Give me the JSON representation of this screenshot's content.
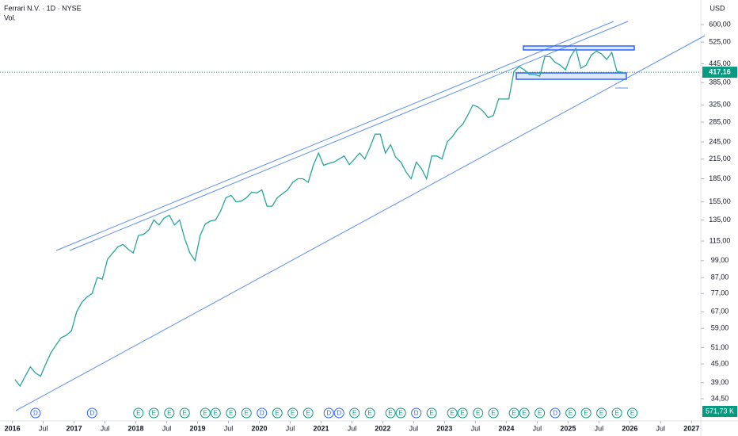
{
  "header": {
    "title": "Ferrari N.V. · 1D · NYSE",
    "volume_label": "Vol.",
    "currency": "USD",
    "volume_value": "571,73 K"
  },
  "chart_data": {
    "type": "line",
    "log_scale": true,
    "grid": false,
    "last_price": {
      "value": 417.16,
      "label": "417,16"
    },
    "ylim": [
      29.3,
      724
    ],
    "yticks": [
      {
        "value": 600,
        "label": "600,00"
      },
      {
        "value": 525,
        "label": "525,00"
      },
      {
        "value": 445,
        "label": "445,00"
      },
      {
        "value": 385,
        "label": "385,00"
      },
      {
        "value": 325,
        "label": "325,00"
      },
      {
        "value": 285,
        "label": "285,00"
      },
      {
        "value": 245,
        "label": "245,00"
      },
      {
        "value": 215,
        "label": "215,00"
      },
      {
        "value": 185,
        "label": "185,00"
      },
      {
        "value": 155,
        "label": "155,00"
      },
      {
        "value": 135,
        "label": "135,00"
      },
      {
        "value": 115,
        "label": "115,00"
      },
      {
        "value": 99,
        "label": "99,00"
      },
      {
        "value": 87,
        "label": "87,00"
      },
      {
        "value": 77,
        "label": "77,00"
      },
      {
        "value": 67,
        "label": "67,00"
      },
      {
        "value": 59,
        "label": "59,00"
      },
      {
        "value": 51,
        "label": "51,00"
      },
      {
        "value": 45,
        "label": "45,00"
      },
      {
        "value": 39,
        "label": "39,00"
      },
      {
        "value": 34.5,
        "label": "34,50"
      }
    ],
    "xlim": [
      2015.8,
      2027.15
    ],
    "xticks": [
      2016,
      {
        "value": 2016.5,
        "label": "Jul"
      },
      2017,
      {
        "value": 2017.5,
        "label": "Jul"
      },
      2018,
      {
        "value": 2018.5,
        "label": "Jul"
      },
      2019,
      {
        "value": 2019.5,
        "label": "Jul"
      },
      2020,
      {
        "value": 2020.5,
        "label": "Jul"
      },
      2021,
      {
        "value": 2021.5,
        "label": "Jul"
      },
      2022,
      {
        "value": 2022.5,
        "label": "Jul"
      },
      2023,
      {
        "value": 2023.5,
        "label": "Jul"
      },
      2024,
      {
        "value": 2024.5,
        "label": "Jul"
      },
      2025,
      {
        "value": 2025.5,
        "label": "Jul"
      },
      2026,
      {
        "value": 2026.5,
        "label": "Jul"
      },
      2027
    ],
    "series": [
      {
        "color": "#26a69a",
        "x": [
          "2016-01",
          "2016-02",
          "2016-03",
          "2016-04",
          "2016-05",
          "2016-06",
          "2016-07",
          "2016-08",
          "2016-09",
          "2016-10",
          "2016-11",
          "2016-12",
          "2017-01",
          "2017-02",
          "2017-03",
          "2017-04",
          "2017-05",
          "2017-06",
          "2017-07",
          "2017-08",
          "2017-09",
          "2017-10",
          "2017-11",
          "2017-12",
          "2018-01",
          "2018-02",
          "2018-03",
          "2018-04",
          "2018-05",
          "2018-06",
          "2018-07",
          "2018-08",
          "2018-09",
          "2018-10",
          "2018-11",
          "2018-12",
          "2019-01",
          "2019-02",
          "2019-03",
          "2019-04",
          "2019-05",
          "2019-06",
          "2019-07",
          "2019-08",
          "2019-09",
          "2019-10",
          "2019-11",
          "2019-12",
          "2020-01",
          "2020-02",
          "2020-03",
          "2020-04",
          "2020-05",
          "2020-06",
          "2020-07",
          "2020-08",
          "2020-09",
          "2020-10",
          "2020-11",
          "2020-12",
          "2021-01",
          "2021-02",
          "2021-03",
          "2021-04",
          "2021-05",
          "2021-06",
          "2021-07",
          "2021-08",
          "2021-09",
          "2021-10",
          "2021-11",
          "2021-12",
          "2022-01",
          "2022-02",
          "2022-03",
          "2022-04",
          "2022-05",
          "2022-06",
          "2022-07",
          "2022-08",
          "2022-09",
          "2022-10",
          "2022-11",
          "2022-12",
          "2023-01",
          "2023-02",
          "2023-03",
          "2023-04",
          "2023-05",
          "2023-06",
          "2023-07",
          "2023-08",
          "2023-09",
          "2023-10",
          "2023-11",
          "2023-12",
          "2024-01",
          "2024-02",
          "2024-03",
          "2024-04",
          "2024-05",
          "2024-06",
          "2024-07",
          "2024-08",
          "2024-09",
          "2024-10",
          "2024-11",
          "2024-12",
          "2025-01",
          "2025-02",
          "2025-03",
          "2025-04",
          "2025-05",
          "2025-06",
          "2025-07",
          "2025-08",
          "2025-09",
          "2025-10",
          "2025-11"
        ],
        "values": [
          40,
          38,
          41,
          44,
          42,
          41,
          45,
          49,
          52,
          55,
          56,
          58,
          67,
          72,
          75,
          77,
          87,
          86,
          100,
          105,
          110,
          112,
          108,
          105,
          120,
          121,
          125,
          135,
          130,
          137,
          140,
          130,
          135,
          117,
          105,
          99,
          120,
          131,
          134,
          135,
          145,
          160,
          163,
          155,
          156,
          160,
          167,
          166,
          170,
          150,
          150,
          160,
          165,
          170,
          180,
          185,
          185,
          180,
          205,
          225,
          205,
          208,
          210,
          215,
          220,
          206,
          215,
          225,
          215,
          235,
          260,
          260,
          225,
          240,
          218,
          210,
          195,
          185,
          210,
          200,
          185,
          220,
          220,
          215,
          245,
          255,
          270,
          280,
          300,
          325,
          320,
          310,
          295,
          300,
          340,
          340,
          340,
          420,
          435,
          425,
          410,
          410,
          405,
          470,
          470,
          450,
          440,
          425,
          470,
          500,
          430,
          440,
          475,
          490,
          480,
          460,
          485,
          420,
          417
        ]
      }
    ]
  },
  "events": [
    {
      "date": "2016-05",
      "label": "D"
    },
    {
      "date": "2017-04",
      "label": "D"
    },
    {
      "date": "2018-01",
      "label": "E"
    },
    {
      "date": "2018-04",
      "label": "E"
    },
    {
      "date": "2018-07",
      "label": "E"
    },
    {
      "date": "2018-10",
      "label": "E"
    },
    {
      "date": "2019-02",
      "label": "E"
    },
    {
      "date": "2019-04",
      "label": "E"
    },
    {
      "date": "2019-07",
      "label": "E"
    },
    {
      "date": "2019-10",
      "label": "E"
    },
    {
      "date": "2020-01",
      "label": "D"
    },
    {
      "date": "2020-04",
      "label": "E"
    },
    {
      "date": "2020-07",
      "label": "E"
    },
    {
      "date": "2020-10",
      "label": "E"
    },
    {
      "date": "2021-02",
      "label": "D"
    },
    {
      "date": "2021-04",
      "label": "D"
    },
    {
      "date": "2021-07",
      "label": "E"
    },
    {
      "date": "2021-10",
      "label": "E"
    },
    {
      "date": "2022-02",
      "label": "E"
    },
    {
      "date": "2022-04",
      "label": "E"
    },
    {
      "date": "2022-07",
      "label": "D"
    },
    {
      "date": "2022-10",
      "label": "E"
    },
    {
      "date": "2023-02",
      "label": "E"
    },
    {
      "date": "2023-04",
      "label": "E"
    },
    {
      "date": "2023-07",
      "label": "E"
    },
    {
      "date": "2023-10",
      "label": "E"
    },
    {
      "date": "2024-02",
      "label": "E"
    },
    {
      "date": "2024-04",
      "label": "E"
    },
    {
      "date": "2024-07",
      "label": "E"
    },
    {
      "date": "2024-10",
      "label": "D"
    },
    {
      "date": "2025-01",
      "label": "E"
    },
    {
      "date": "2025-04",
      "label": "E"
    },
    {
      "date": "2025-07",
      "label": "E"
    },
    {
      "date": "2025-10",
      "label": "E"
    },
    {
      "date": "2026-01",
      "label": "E"
    }
  ]
}
